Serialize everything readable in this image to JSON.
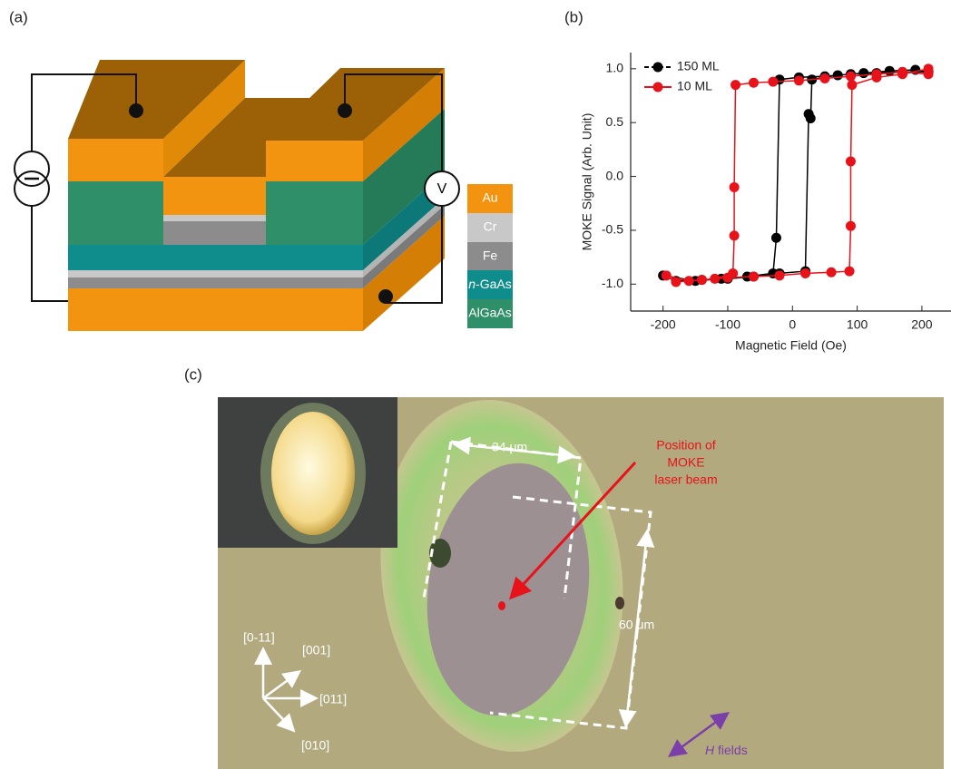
{
  "panels": {
    "a": "(a)",
    "b": "(b)",
    "c": "(c)"
  },
  "diagram": {
    "voltmeter": "V",
    "layers": [
      "Au",
      "Cr",
      "Fe",
      {
        "prefix": "n",
        "rest": "-GaAs"
      },
      "AlGaAs"
    ]
  },
  "chart_data": {
    "type": "scatter",
    "x_label": "Magnetic Field (Oe)",
    "y_label": "MOKE Signal (Arb. Unit)",
    "xlim": [
      -250,
      245
    ],
    "ylim": [
      -1.25,
      1.15
    ],
    "xticks": [
      -200,
      -100,
      0,
      100,
      200
    ],
    "yticks": [
      {
        "value": -1,
        "label": "-1.0"
      },
      -0.5,
      {
        "value": 0,
        "label": "0.0"
      },
      0.5,
      {
        "value": 1,
        "label": "1.0"
      }
    ],
    "legend": "upper-left",
    "series": [
      {
        "name": "150 ML",
        "color": "#000000",
        "x": [
          210,
          170,
          130,
          90,
          50,
          10,
          -20,
          -25,
          -30,
          -70,
          -110,
          -150,
          -200,
          -180,
          -140,
          -100,
          -60,
          -20,
          20,
          25,
          28,
          30,
          70,
          110,
          150,
          190,
          210
        ],
        "values": [
          0.97,
          0.97,
          0.96,
          0.95,
          0.93,
          0.92,
          0.9,
          -0.57,
          -0.9,
          -0.93,
          -0.95,
          -0.97,
          -0.92,
          -0.97,
          -0.96,
          -0.95,
          -0.93,
          -0.9,
          -0.88,
          0.58,
          0.54,
          0.9,
          0.94,
          0.96,
          0.98,
          0.99,
          0.97
        ]
      },
      {
        "name": "10 ML",
        "color": "#e8121b",
        "x": [
          210,
          170,
          130,
          90,
          50,
          10,
          -30,
          -60,
          -88,
          -90,
          -90,
          -92,
          -120,
          -160,
          -195,
          -180,
          -140,
          -100,
          -60,
          -20,
          20,
          60,
          88,
          90,
          90,
          92,
          130,
          170,
          210
        ],
        "values": [
          0.95,
          0.97,
          0.95,
          0.93,
          0.91,
          0.89,
          0.88,
          0.87,
          0.85,
          -0.1,
          -0.55,
          -0.9,
          -0.95,
          -0.97,
          -0.92,
          -0.98,
          -0.96,
          -0.94,
          -0.93,
          -0.92,
          -0.9,
          -0.89,
          -0.88,
          -0.46,
          0.14,
          0.85,
          0.92,
          0.95,
          1.0
        ]
      }
    ]
  },
  "micrograph": {
    "width_label": "34 μm",
    "height_label": "60 μm",
    "beam_label": [
      "Position of",
      "MOKE",
      "laser beam"
    ],
    "directions": [
      "[0-11]",
      "[001]",
      "[011]",
      "[010]"
    ],
    "field_label": {
      "symbol": "H",
      "word": "fields"
    }
  }
}
